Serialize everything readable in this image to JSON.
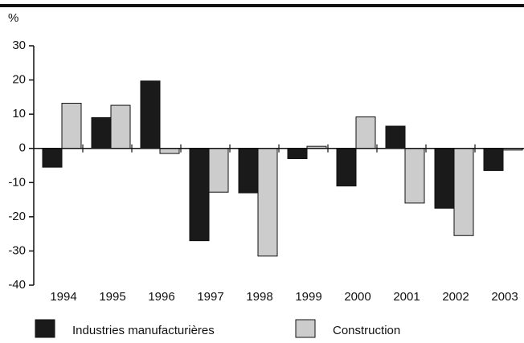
{
  "chart_data": {
    "type": "bar",
    "y_label": "%",
    "categories": [
      "1994",
      "1995",
      "1996",
      "1997",
      "1998",
      "1999",
      "2000",
      "2001",
      "2002",
      "2003"
    ],
    "series": [
      {
        "name": "Industries manufacturières",
        "color": "#1a1a1a",
        "values": [
          -5.5,
          9,
          19.7,
          -27,
          -13,
          -3,
          -11,
          6.5,
          -17.5,
          -6.5
        ]
      },
      {
        "name": "Construction",
        "color": "#cccccc",
        "values": [
          13.2,
          12.6,
          -1.5,
          -12.8,
          -31.5,
          0.6,
          9.2,
          -16,
          -25.5,
          -0.5
        ]
      }
    ],
    "ylim": [
      -40,
      30
    ],
    "yticks": [
      -40,
      -30,
      -20,
      -10,
      0,
      10,
      20,
      30
    ],
    "grid": false
  }
}
